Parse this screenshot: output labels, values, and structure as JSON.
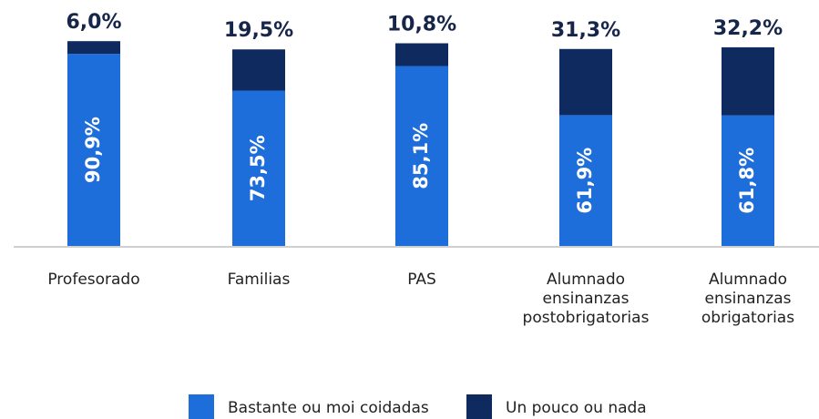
{
  "chart_data": {
    "type": "stacked-bar",
    "categories": [
      "Profesorado",
      "Familias",
      "PAS",
      "Alumnado ensinanzas postobrigatorias",
      "Alumnado ensinanzas obrigatorias"
    ],
    "series": [
      {
        "name": "Bastante ou moi coidadas",
        "color": "#1d6ddb",
        "values": [
          90.9,
          73.5,
          85.1,
          61.9,
          61.8
        ],
        "value_labels": [
          "90,9%",
          "73,5%",
          "85,1%",
          "61,9%",
          "61,8%"
        ]
      },
      {
        "name": "Un pouco ou nada",
        "color": "#0f2a5e",
        "values": [
          6.0,
          19.5,
          10.8,
          31.3,
          32.2
        ],
        "value_labels": [
          "6,0%",
          "19,5%",
          "10,8%",
          "31,3%",
          "32,2%"
        ]
      }
    ],
    "ylim": [
      0,
      100
    ]
  }
}
